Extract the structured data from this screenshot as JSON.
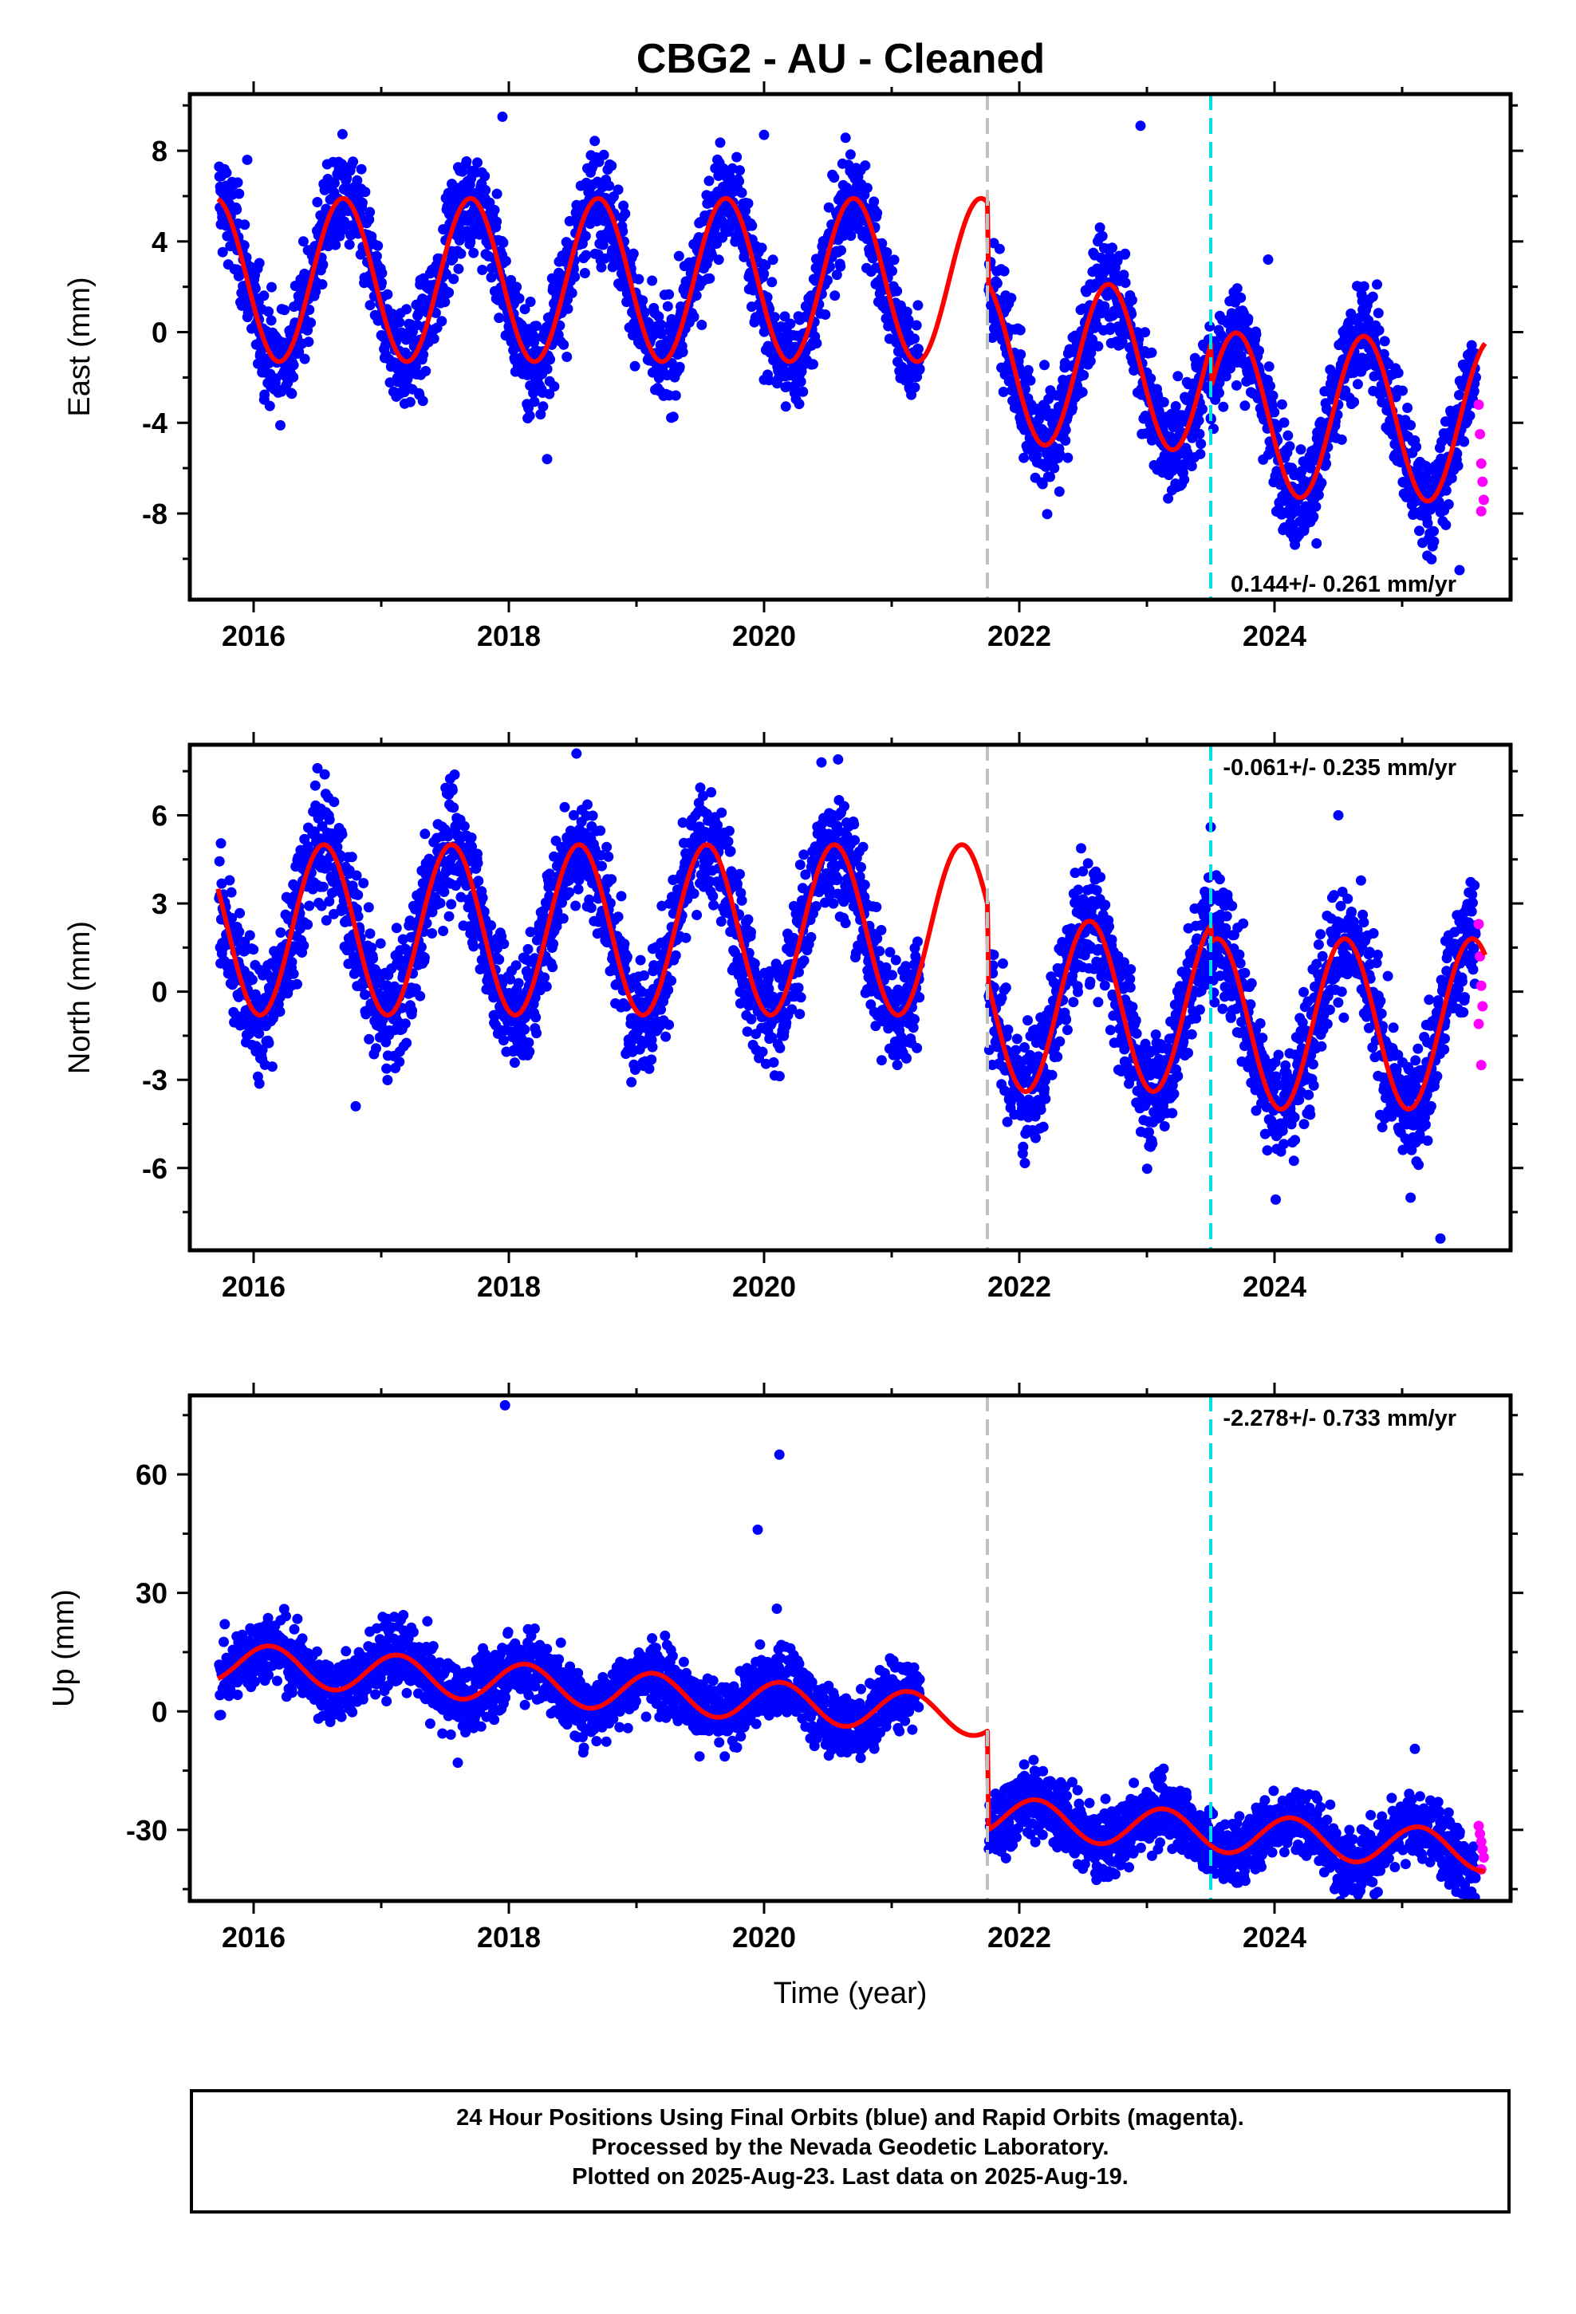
{
  "title": "CBG2  - AU - Cleaned",
  "footer": {
    "line1": "24 Hour Positions Using Final Orbits (blue) and Rapid Orbits (magenta).",
    "line2": "Processed by the Nevada Geodetic Laboratory.",
    "line3": "Plotted on 2025-Aug-23. Last data on 2025-Aug-19."
  },
  "colors": {
    "final_orbits": "#0000ff",
    "rapid_orbits": "#ff00ff",
    "model_fit": "#ff0000",
    "equipment_change": "#c0c0c0",
    "event_line": "#00e0e0"
  },
  "chart_data": [
    {
      "type": "scatter",
      "panel": "east",
      "ylabel": "East (mm)",
      "xlabel": "",
      "xlim": [
        2015.5,
        2025.85
      ],
      "ylim": [
        -11.8,
        10.5
      ],
      "xticks": [
        "2016",
        "2018",
        "2020",
        "2022",
        "2024"
      ],
      "yticks": [
        "8",
        "4",
        "0",
        "-4",
        "-8"
      ],
      "ytick_values": [
        8,
        4,
        0,
        -4,
        -8
      ],
      "rate": "0.144+/- 0.261 mm/yr",
      "rate_position": "bottom-right",
      "grey_line_x": 2021.75,
      "cyan_line_x": 2023.5,
      "model": {
        "amp": 3.6,
        "phase": 2015.45,
        "segments": [
          {
            "start": 2015.72,
            "end": 2021.75,
            "offset": 2.3,
            "slope": 0.0
          },
          {
            "start": 2021.75,
            "end": 2023.5,
            "offset": -1.3,
            "slope": -0.2
          },
          {
            "start": 2023.5,
            "end": 2025.65,
            "offset": -3.6,
            "slope": -0.15
          }
        ]
      },
      "outliers": [
        [
          2015.95,
          7.6
        ],
        [
          2017.95,
          9.5
        ],
        [
          2018.3,
          -5.6
        ],
        [
          2020.0,
          8.7
        ],
        [
          2020.0,
          -2.1
        ],
        [
          2022.95,
          9.1
        ],
        [
          2023.95,
          3.2
        ],
        [
          2025.45,
          -10.5
        ]
      ],
      "rapid": [
        [
          2025.6,
          -3.2
        ],
        [
          2025.61,
          -4.5
        ],
        [
          2025.62,
          -5.8
        ],
        [
          2025.63,
          -6.6
        ],
        [
          2025.64,
          -7.4
        ],
        [
          2025.62,
          -7.9
        ]
      ]
    },
    {
      "type": "scatter",
      "panel": "north",
      "ylabel": "North (mm)",
      "xlabel": "",
      "xlim": [
        2015.5,
        2025.85
      ],
      "ylim": [
        -8.8,
        8.4
      ],
      "xticks": [
        "2016",
        "2018",
        "2020",
        "2022",
        "2024"
      ],
      "yticks": [
        "6",
        "3",
        "0",
        "-3",
        "-6"
      ],
      "ytick_values": [
        6,
        3,
        0,
        -3,
        -6
      ],
      "rate": "-0.061+/- 0.235 mm/yr",
      "rate_position": "top-right",
      "grey_line_x": 2021.75,
      "cyan_line_x": 2023.5,
      "model": {
        "amp": 2.9,
        "phase": 2016.3,
        "segments": [
          {
            "start": 2015.72,
            "end": 2021.75,
            "offset": 2.1,
            "slope": 0.0
          },
          {
            "start": 2021.75,
            "end": 2023.5,
            "offset": -0.5,
            "slope": 0.0
          },
          {
            "start": 2023.5,
            "end": 2025.65,
            "offset": -1.1,
            "slope": 0.0
          }
        ]
      },
      "outliers": [
        [
          2016.5,
          7.6
        ],
        [
          2016.8,
          -3.9
        ],
        [
          2018.53,
          8.1
        ],
        [
          2020.45,
          7.8
        ],
        [
          2020.58,
          7.9
        ],
        [
          2024.5,
          6.0
        ],
        [
          2025.3,
          -8.4
        ],
        [
          2023.5,
          5.6
        ]
      ],
      "rapid": [
        [
          2025.6,
          2.3
        ],
        [
          2025.61,
          1.2
        ],
        [
          2025.62,
          0.2
        ],
        [
          2025.63,
          -0.5
        ],
        [
          2025.6,
          -1.1
        ],
        [
          2025.62,
          -2.5
        ]
      ]
    },
    {
      "type": "scatter",
      "panel": "up",
      "ylabel": "Up (mm)",
      "xlabel": "Time (year)",
      "xlim": [
        2015.5,
        2025.85
      ],
      "ylim": [
        -48,
        80
      ],
      "xticks": [
        "2016",
        "2018",
        "2020",
        "2022",
        "2024"
      ],
      "yticks": [
        "60",
        "30",
        "0",
        "-30"
      ],
      "ytick_values": [
        60,
        30,
        0,
        -30
      ],
      "rate": "-2.278+/- 0.733 mm/yr",
      "rate_position": "top-right",
      "grey_line_x": 2021.75,
      "cyan_line_x": 2023.5,
      "model": {
        "amp": 5.0,
        "phase": 2015.88,
        "segments": [
          {
            "start": 2015.72,
            "end": 2021.75,
            "offset": 12.5,
            "slope": -2.3
          },
          {
            "start": 2021.75,
            "end": 2023.5,
            "offset": -26.5,
            "slope": -2.3
          },
          {
            "start": 2023.5,
            "end": 2025.65,
            "offset": -30.5,
            "slope": -2.3
          }
        ]
      },
      "outliers": [
        [
          2017.97,
          77.5
        ],
        [
          2020.12,
          65.0
        ],
        [
          2019.95,
          46.0
        ],
        [
          2020.1,
          26.0
        ],
        [
          2025.1,
          -9.5
        ],
        [
          2017.6,
          -13.0
        ]
      ],
      "rapid": [
        [
          2025.6,
          -29.0
        ],
        [
          2025.61,
          -31.0
        ],
        [
          2025.62,
          -33.0
        ],
        [
          2025.63,
          -35.0
        ],
        [
          2025.64,
          -37.0
        ],
        [
          2025.62,
          -40.0
        ]
      ]
    }
  ]
}
